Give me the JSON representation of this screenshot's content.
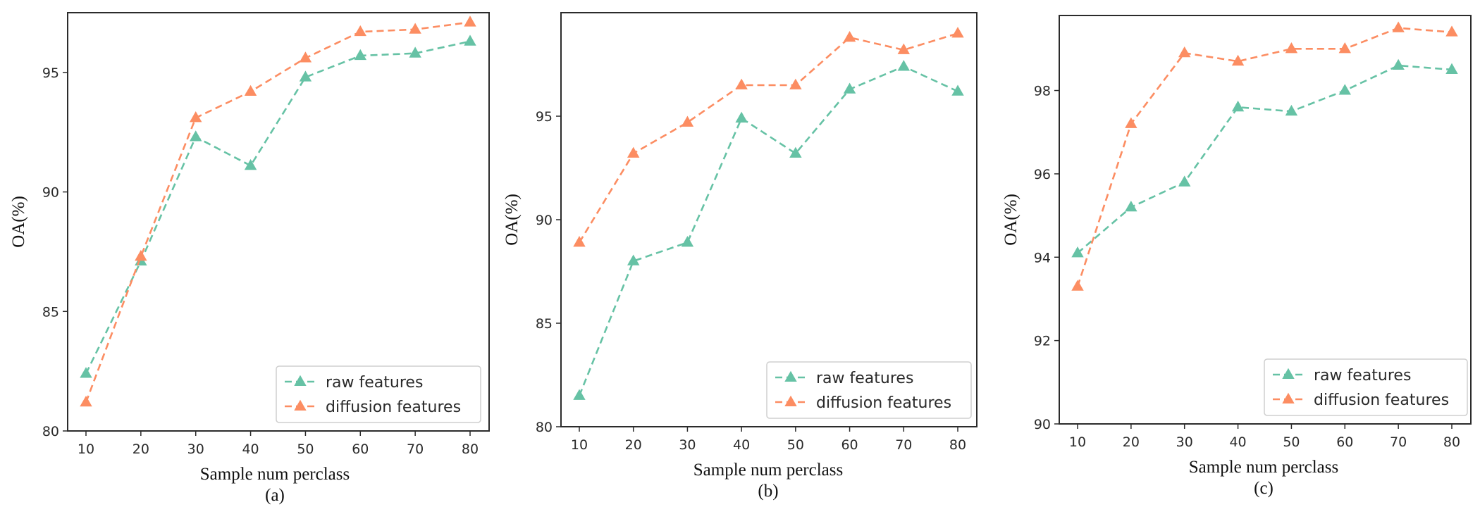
{
  "chart_data": [
    {
      "type": "line",
      "panel_label": "(a)",
      "xlabel": "Sample num perclass",
      "ylabel": "OA(%)",
      "x": [
        10,
        20,
        30,
        40,
        50,
        60,
        70,
        80
      ],
      "ylim": [
        80,
        97.5
      ],
      "yticks": [
        80,
        85,
        90,
        95
      ],
      "legend_position": "lower-right",
      "series": [
        {
          "name": "raw features",
          "color": "#66c2a5",
          "values": [
            82.4,
            87.1,
            92.3,
            91.1,
            94.8,
            95.7,
            95.8,
            96.3
          ]
        },
        {
          "name": "diffusion features",
          "color": "#fc8d62",
          "values": [
            81.2,
            87.3,
            93.1,
            94.2,
            95.6,
            96.7,
            96.8,
            97.1
          ]
        }
      ]
    },
    {
      "type": "line",
      "panel_label": "(b)",
      "xlabel": "Sample num perclass",
      "ylabel": "OA(%)",
      "x": [
        10,
        20,
        30,
        40,
        50,
        60,
        70,
        80
      ],
      "ylim": [
        80,
        100
      ],
      "yticks": [
        80,
        85,
        90,
        95
      ],
      "legend_position": "lower-right",
      "series": [
        {
          "name": "raw features",
          "color": "#66c2a5",
          "values": [
            81.5,
            88.0,
            88.9,
            94.9,
            93.2,
            96.3,
            97.4,
            96.2
          ]
        },
        {
          "name": "diffusion features",
          "color": "#fc8d62",
          "values": [
            88.9,
            93.2,
            94.7,
            96.5,
            96.5,
            98.8,
            98.2,
            99.0
          ]
        }
      ]
    },
    {
      "type": "line",
      "panel_label": "(c)",
      "xlabel": "Sample num perclass",
      "ylabel": "OA(%)",
      "x": [
        10,
        20,
        30,
        40,
        50,
        60,
        70,
        80
      ],
      "ylim": [
        90,
        99.8
      ],
      "yticks": [
        90,
        92,
        94,
        96,
        98
      ],
      "legend_position": "lower-right",
      "series": [
        {
          "name": "raw features",
          "color": "#66c2a5",
          "values": [
            94.1,
            95.2,
            95.8,
            97.6,
            97.5,
            98.0,
            98.6,
            98.5
          ]
        },
        {
          "name": "diffusion features",
          "color": "#fc8d62",
          "values": [
            93.3,
            97.2,
            98.9,
            98.7,
            99.0,
            99.0,
            99.5,
            99.4
          ]
        }
      ]
    }
  ]
}
